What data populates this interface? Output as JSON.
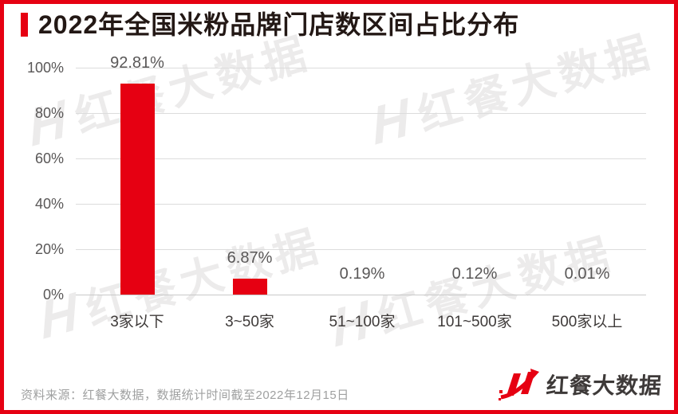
{
  "title": {
    "text": "2022年全国米粉品牌门店数区间占比分布"
  },
  "chart_data": {
    "type": "bar",
    "title": "2022年全国米粉品牌门店数区间占比分布",
    "categories": [
      "3家以下",
      "3~50家",
      "51~100家",
      "101~500家",
      "500家以上"
    ],
    "values": [
      92.81,
      6.87,
      0.19,
      0.12,
      0.01
    ],
    "value_labels": [
      "92.81%",
      "6.87%",
      "0.19%",
      "0.12%",
      "0.01%"
    ],
    "y_ticks": [
      "100%",
      "80%",
      "60%",
      "40%",
      "20%",
      "0%"
    ],
    "ylim": [
      0,
      100
    ],
    "grid": true,
    "legend": false,
    "bar_color": "#e60012",
    "xlabel": "",
    "ylabel": ""
  },
  "watermark": {
    "logo_char": "H",
    "text": "红餐大数据"
  },
  "footer": {
    "source": "资料来源：红餐大数据，数据统计时间截至2022年12月15日",
    "logo_text": "红餐大数据"
  },
  "brand": {
    "red": "#e60012",
    "dark": "#231815",
    "gray_text": "#595757"
  }
}
